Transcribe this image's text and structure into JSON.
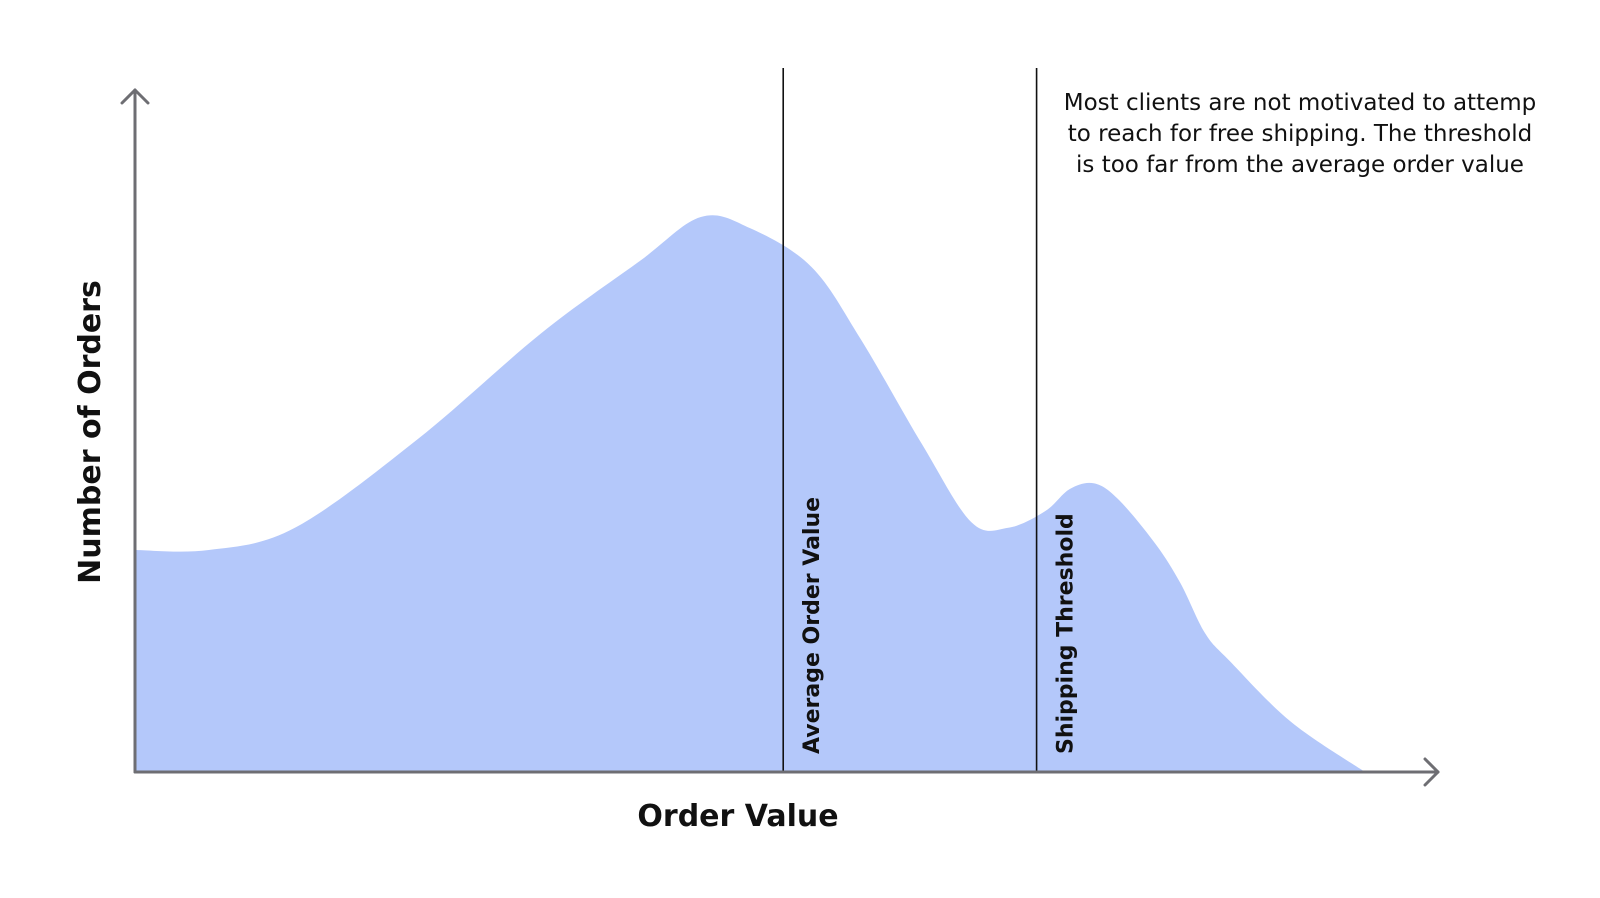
{
  "chart_data": {
    "type": "area",
    "xlabel": "Order Value",
    "ylabel": "Number of Orders",
    "xlim": [
      0,
      100
    ],
    "ylim": [
      0,
      100
    ],
    "grid": false,
    "fill_color": "#b4c8fa",
    "axis_color": "#6e6e73",
    "series": [
      {
        "x": [
          0,
          6,
          13,
          23,
          33,
          41,
          46,
          50,
          55,
          59,
          64,
          68,
          71,
          74,
          76,
          78,
          80,
          83,
          85,
          87,
          89,
          94,
          100
        ],
        "values": [
          40,
          40,
          44,
          60,
          79,
          92,
          100,
          98,
          91,
          78,
          59,
          45,
          44,
          47,
          51,
          52,
          49,
          41,
          34,
          25,
          20,
          9,
          0
        ]
      }
    ],
    "markers": [
      {
        "label": "Average Order Value",
        "x": 52.7
      },
      {
        "label": "Shipping Threshold",
        "x": 73.3
      }
    ],
    "annotation": "Most clients are not motivated to attemp to reach for free shipping. The threshold is too far from the average order value"
  }
}
